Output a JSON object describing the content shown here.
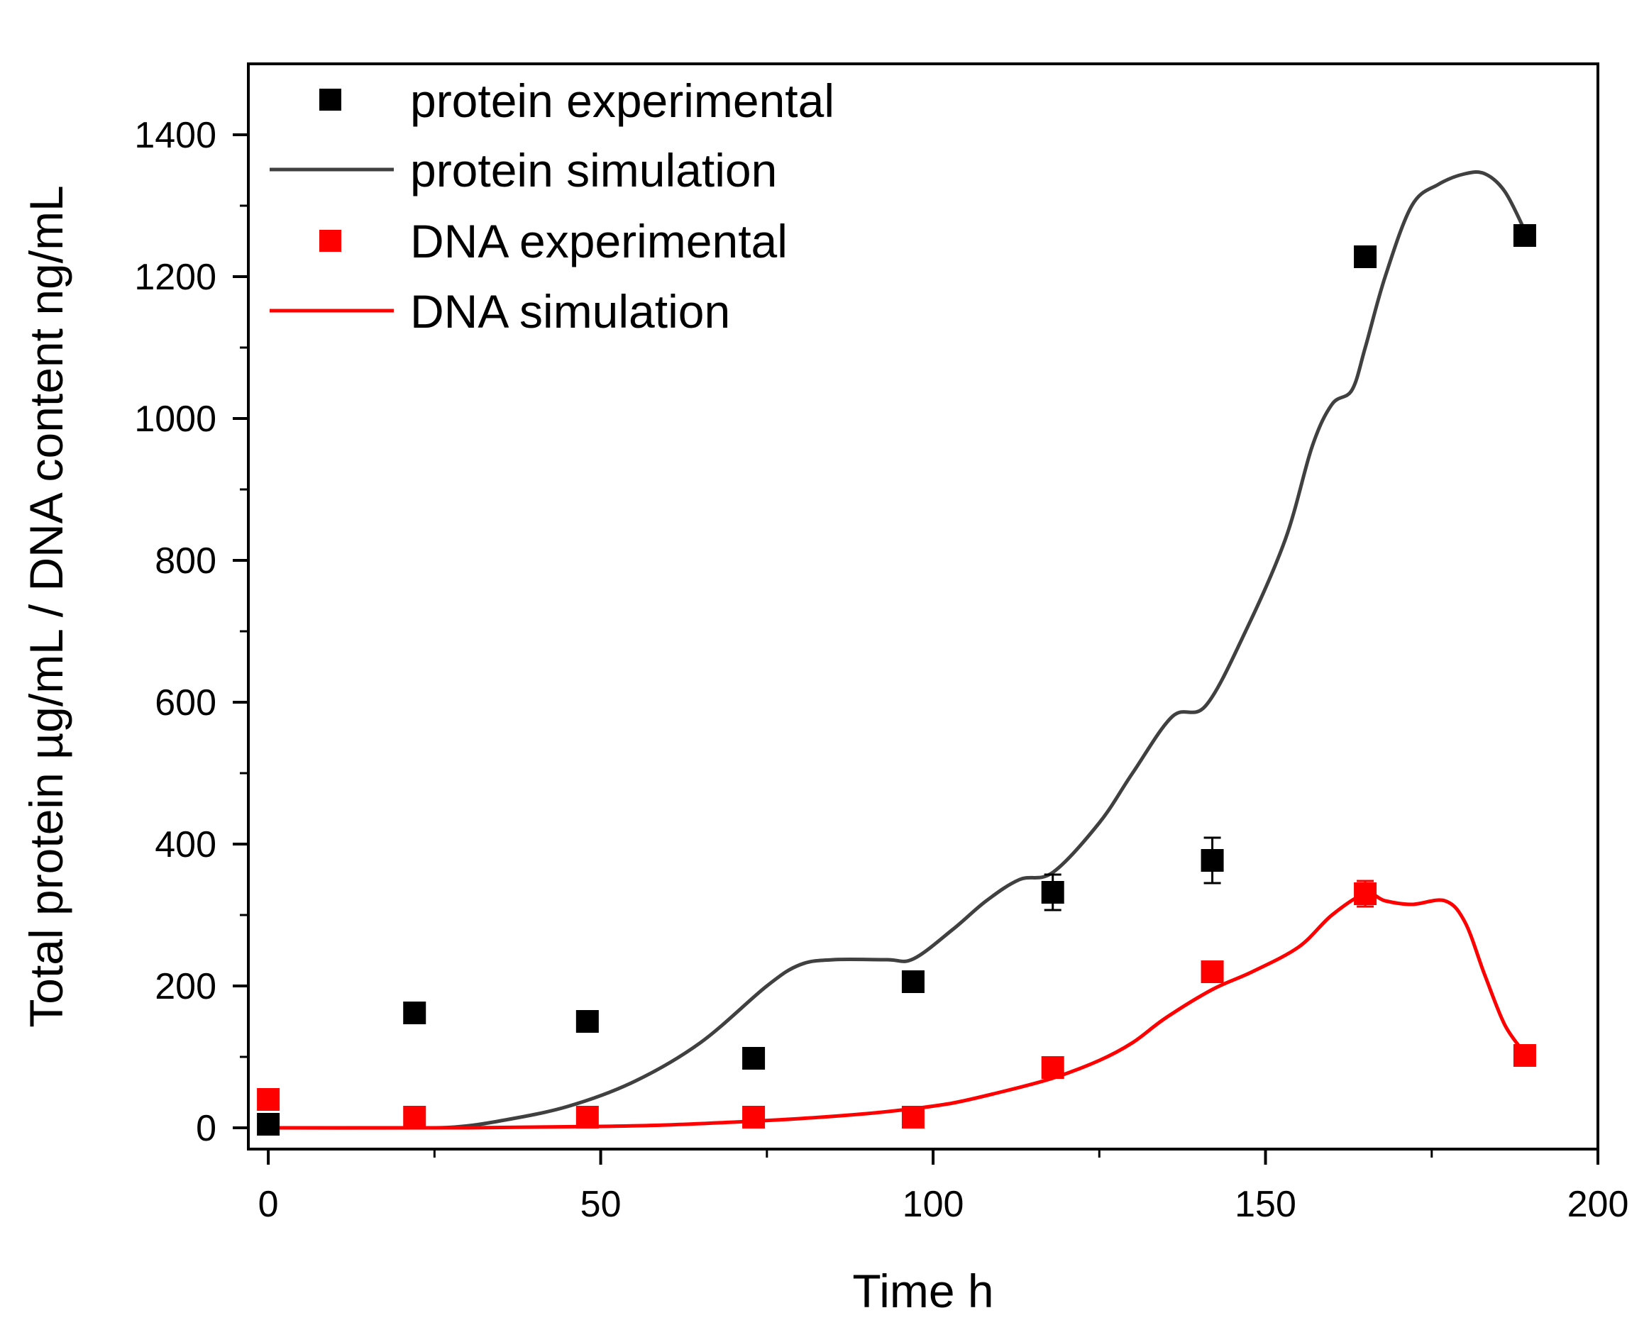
{
  "chart_data": {
    "type": "scatter",
    "title": "",
    "xlabel": "Time h",
    "ylabel": "Total protein µg/mL / DNA content ng/mL",
    "xlim": [
      -3,
      200
    ],
    "ylim": [
      -30,
      1500
    ],
    "x_ticks": [
      0,
      50,
      100,
      150,
      200
    ],
    "x_tick_labels": [
      "0",
      "50",
      "100",
      "150",
      "200"
    ],
    "y_ticks": [
      0,
      200,
      400,
      600,
      800,
      1000,
      1200,
      1400
    ],
    "y_tick_labels": [
      "0",
      "200",
      "400",
      "600",
      "800",
      "1000",
      "1200",
      "1400"
    ],
    "grid": false,
    "legend_position": "top-left",
    "colors": {
      "protein_markers": "#000000",
      "protein_line": "#404040",
      "dna_markers": "#ff0000",
      "dna_line": "#ff0000"
    },
    "series": [
      {
        "name": "protein experimental",
        "kind": "scatter",
        "x": [
          0,
          22,
          48,
          73,
          97,
          118,
          142,
          165,
          189
        ],
        "y": [
          5,
          162,
          150,
          98,
          206,
          332,
          377,
          1228,
          1258
        ],
        "error": [
          0,
          0,
          0,
          0,
          0,
          25,
          32,
          0,
          0
        ]
      },
      {
        "name": "protein simulation",
        "kind": "line",
        "x": [
          0,
          20,
          28,
          35,
          45,
          55,
          65,
          75,
          80,
          85,
          93,
          97,
          103,
          108,
          113,
          118,
          125,
          130,
          136,
          141,
          147,
          153,
          157,
          160,
          163,
          165,
          168,
          172,
          176,
          180,
          183,
          186,
          189
        ],
        "y": [
          0,
          0,
          1,
          10,
          30,
          65,
          120,
          200,
          230,
          237,
          237,
          238,
          280,
          320,
          350,
          360,
          430,
          500,
          580,
          595,
          700,
          830,
          960,
          1020,
          1040,
          1100,
          1200,
          1300,
          1330,
          1345,
          1345,
          1320,
          1265
        ]
      },
      {
        "name": "DNA experimental",
        "kind": "scatter",
        "x": [
          0,
          22,
          48,
          73,
          97,
          118,
          142,
          165,
          189
        ],
        "y": [
          40,
          15,
          15,
          15,
          15,
          85,
          220,
          330,
          102
        ],
        "error": [
          0,
          0,
          0,
          0,
          0,
          0,
          0,
          18,
          0
        ]
      },
      {
        "name": "DNA simulation",
        "kind": "line",
        "x": [
          0,
          30,
          50,
          60,
          70,
          80,
          90,
          97,
          103,
          110,
          118,
          125,
          130,
          135,
          142,
          148,
          155,
          160,
          165,
          168,
          172,
          177,
          180,
          183,
          186,
          189
        ],
        "y": [
          0,
          0,
          2,
          4,
          8,
          13,
          20,
          27,
          35,
          50,
          70,
          95,
          120,
          155,
          195,
          220,
          255,
          300,
          330,
          320,
          315,
          320,
          290,
          215,
          145,
          105
        ]
      }
    ]
  }
}
